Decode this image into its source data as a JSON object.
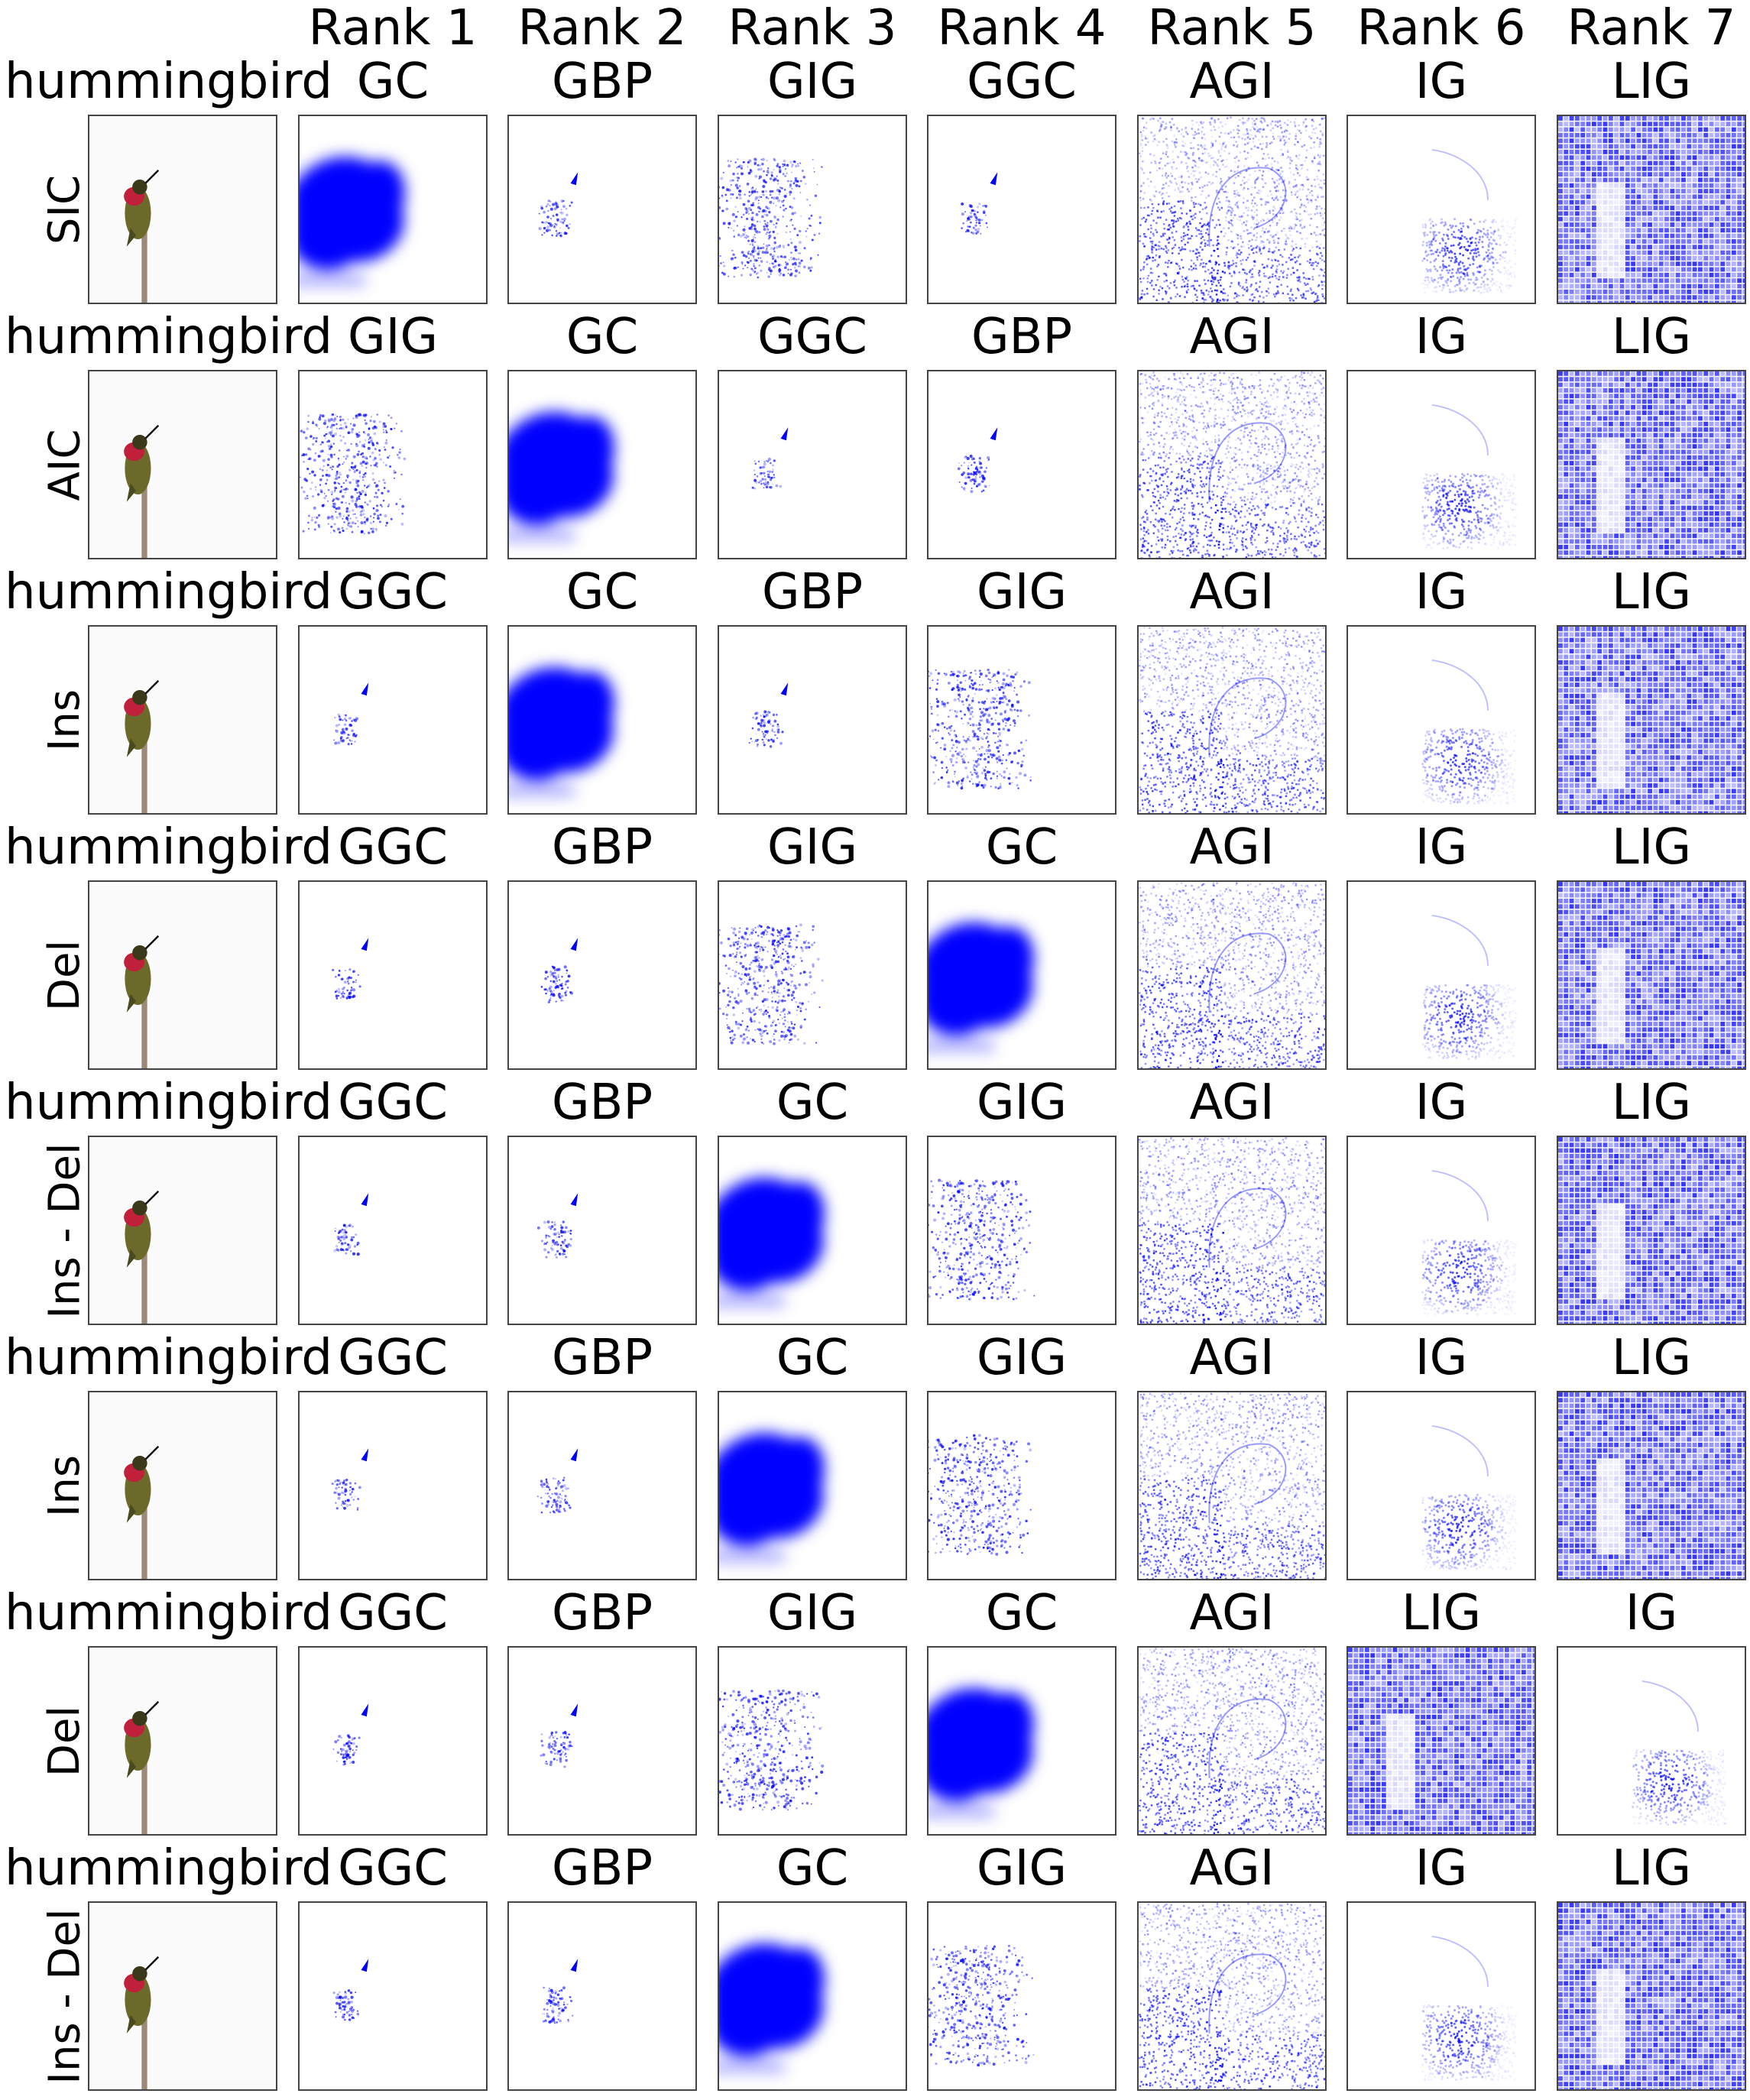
{
  "columns": [
    "Rank 1",
    "Rank 2",
    "Rank 3",
    "Rank 4",
    "Rank 5",
    "Rank 6",
    "Rank 7"
  ],
  "rows": [
    {
      "class_label": "hummingbird",
      "metric": "SIC",
      "ranks": [
        "GC",
        "GBP",
        "GIG",
        "GGC",
        "AGI",
        "IG",
        "LIG"
      ]
    },
    {
      "class_label": "hummingbird",
      "metric": "AIC",
      "ranks": [
        "GIG",
        "GC",
        "GGC",
        "GBP",
        "AGI",
        "IG",
        "LIG"
      ]
    },
    {
      "class_label": "hummingbird",
      "metric": "Ins",
      "ranks": [
        "GGC",
        "GC",
        "GBP",
        "GIG",
        "AGI",
        "IG",
        "LIG"
      ]
    },
    {
      "class_label": "hummingbird",
      "metric": "Del",
      "ranks": [
        "GGC",
        "GBP",
        "GIG",
        "GC",
        "AGI",
        "IG",
        "LIG"
      ]
    },
    {
      "class_label": "hummingbird",
      "metric": "Ins - Del",
      "ranks": [
        "GGC",
        "GBP",
        "GC",
        "GIG",
        "AGI",
        "IG",
        "LIG"
      ]
    },
    {
      "class_label": "hummingbird",
      "metric": "Ins",
      "ranks": [
        "GGC",
        "GBP",
        "GC",
        "GIG",
        "AGI",
        "IG",
        "LIG"
      ]
    },
    {
      "class_label": "hummingbird",
      "metric": "Del",
      "ranks": [
        "GGC",
        "GBP",
        "GIG",
        "GC",
        "AGI",
        "LIG",
        "IG"
      ]
    },
    {
      "class_label": "hummingbird",
      "metric": "Ins - Del",
      "ranks": [
        "GGC",
        "GBP",
        "GC",
        "GIG",
        "AGI",
        "IG",
        "LIG"
      ]
    }
  ],
  "colors": {
    "saliency": "#0000ff",
    "bird_body": "#6b6a2a",
    "bird_throat": "#c0203a",
    "branch": "#9c8a78"
  }
}
